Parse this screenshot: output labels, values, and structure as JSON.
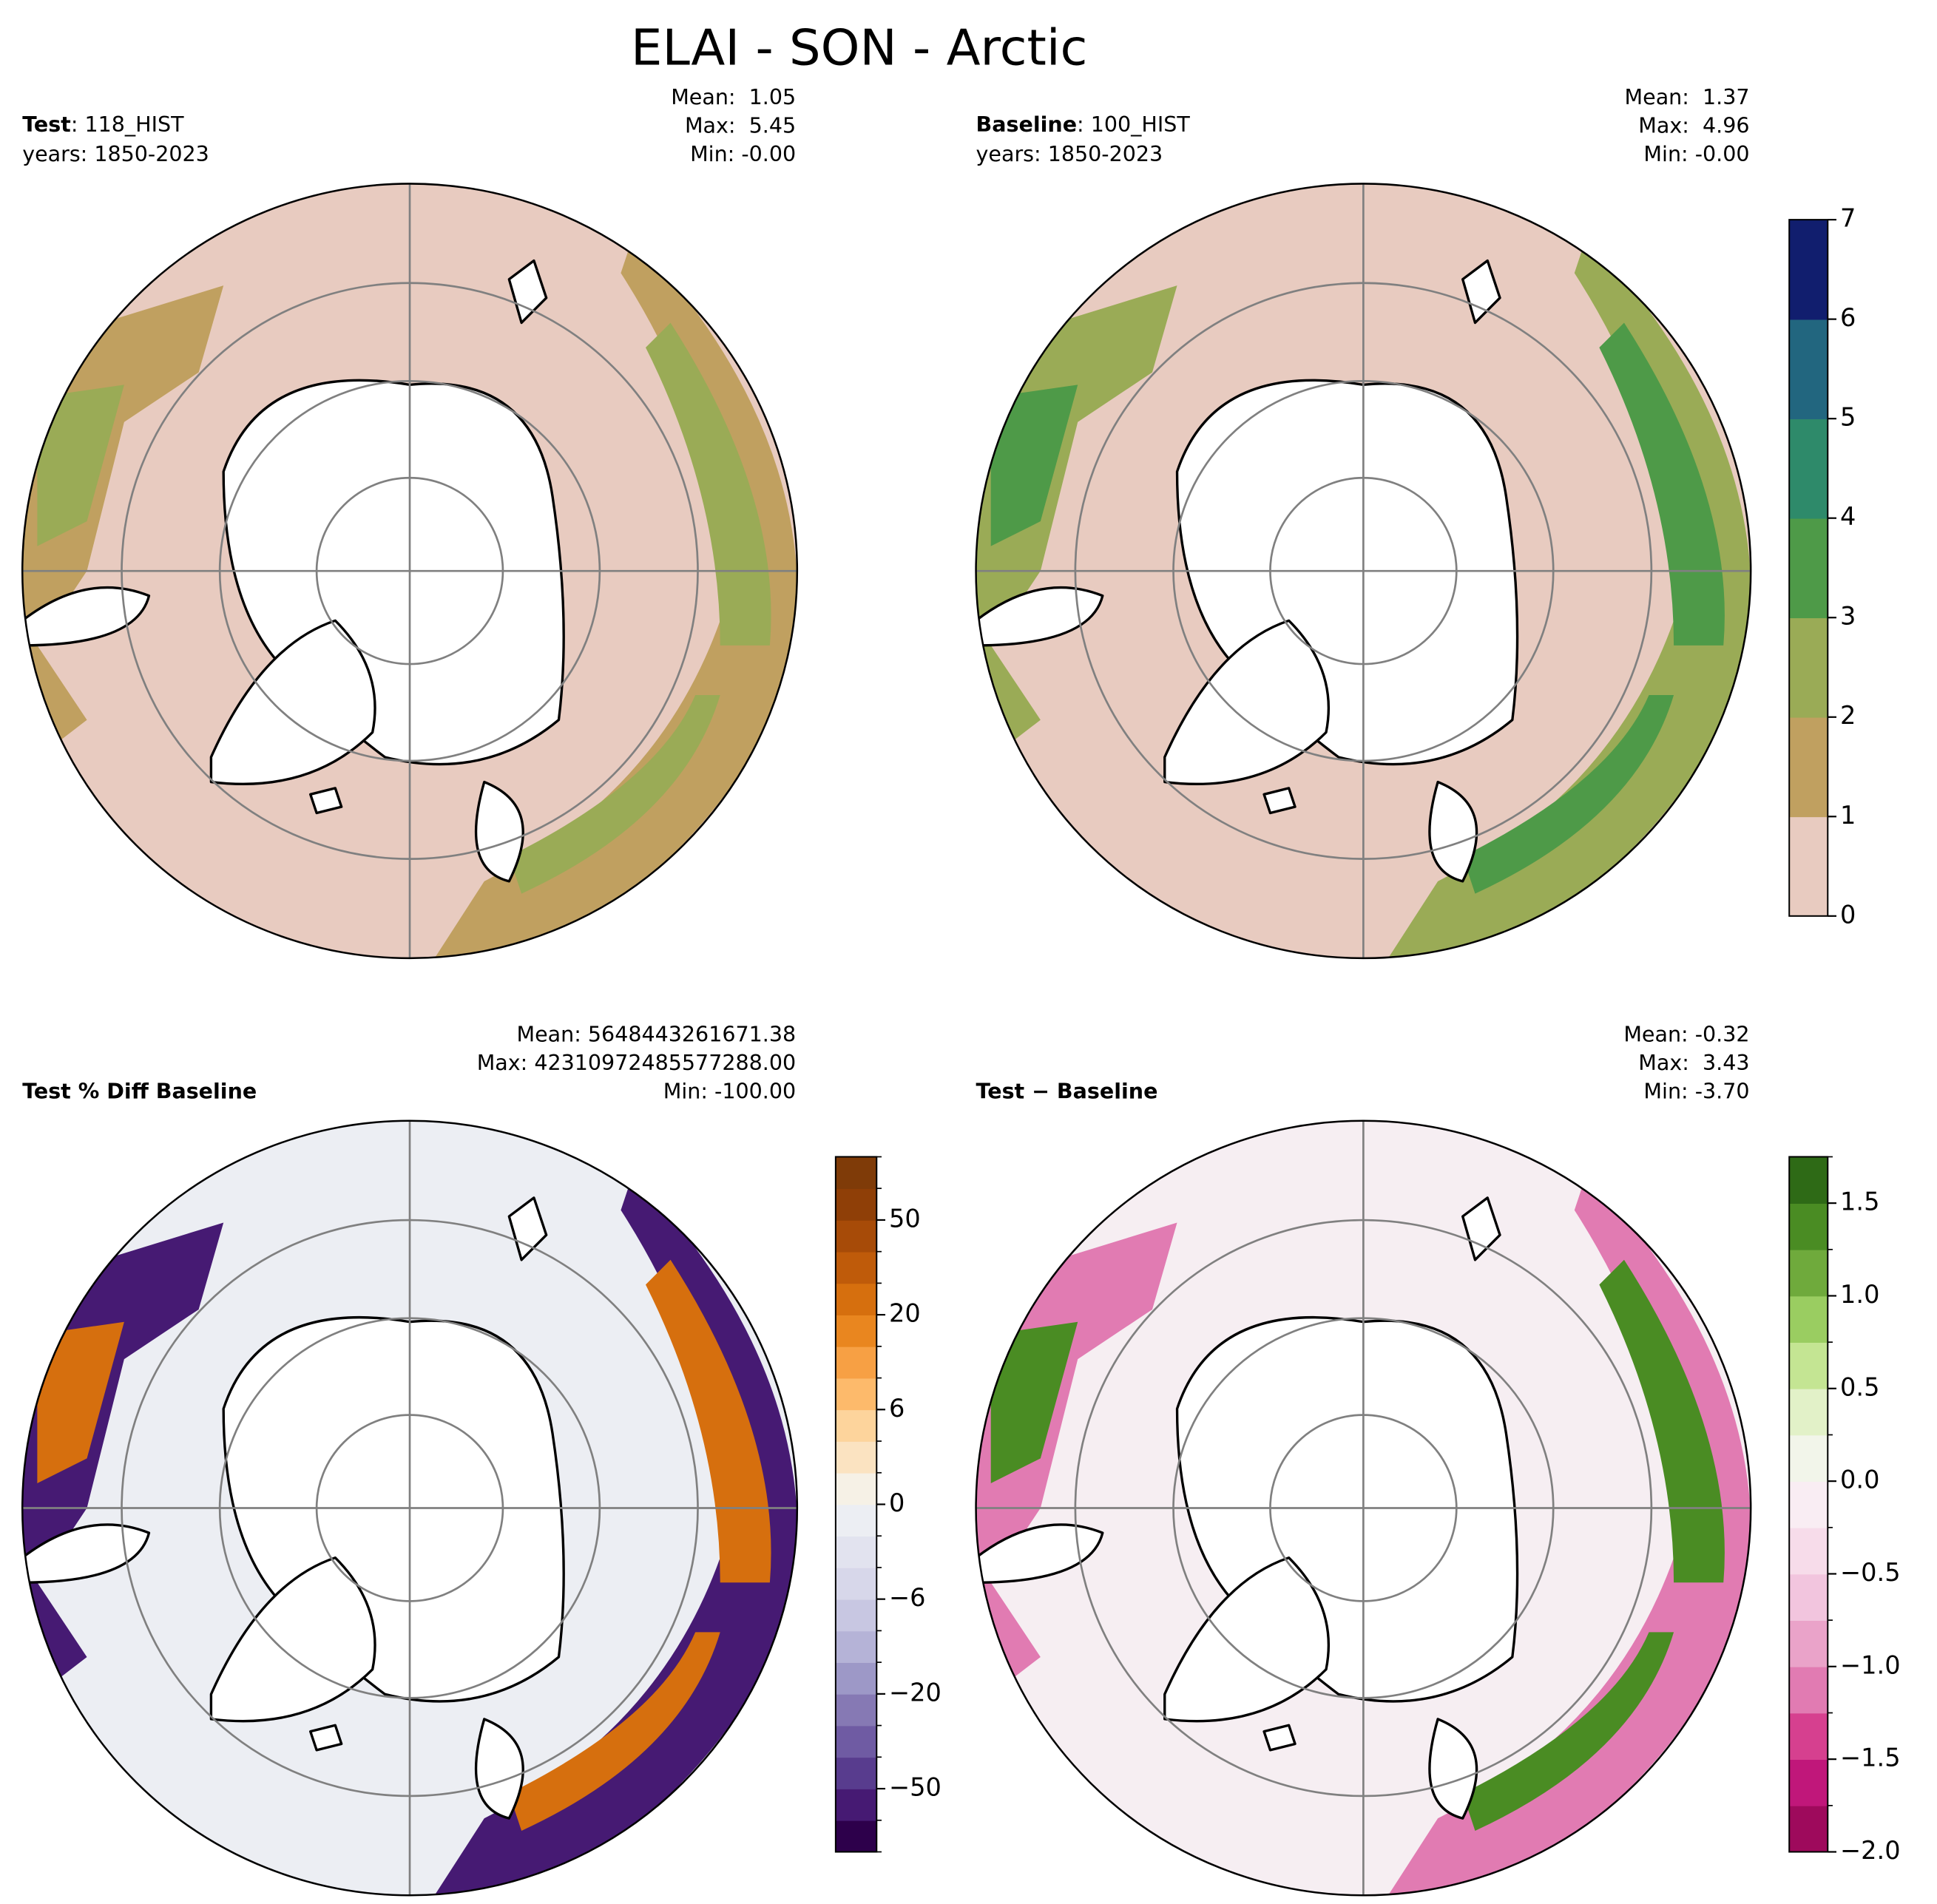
{
  "title": "ELAI - SON - Arctic",
  "panels": [
    {
      "name": "Test",
      "run": ": 118_HIST",
      "years": "years: 1850-2023",
      "stats": [
        "Mean:  1.05",
        "Max:  5.45",
        "Min: -0.00"
      ]
    },
    {
      "name": "Baseline",
      "run": ": 100_HIST",
      "years": "years: 1850-2023",
      "stats": [
        "Mean:  1.37",
        "Max:  4.96",
        "Min: -0.00"
      ]
    },
    {
      "name": "Test % Diff Baseline",
      "stats": [
        "Mean: 5648443261671.38",
        "Max: 42310972485577288.00",
        "Min: -100.00"
      ]
    },
    {
      "name": "Test − Baseline",
      "stats": [
        "Mean: -0.32",
        "Max:  3.43",
        "Min: -3.70"
      ]
    }
  ],
  "colorbars": [
    {
      "levels": [
        0,
        1,
        2,
        3,
        4,
        5,
        6,
        7
      ],
      "colors": [
        "#e8cbc0",
        "#c0a060",
        "#9aab56",
        "#4e9a48",
        "#2e8a6a",
        "#22667f",
        "#111e6e"
      ],
      "ticks": [
        0,
        1,
        2,
        3,
        4,
        5,
        6,
        7
      ]
    },
    {
      "levels": [
        -100,
        -75,
        -50,
        -40,
        -30,
        -20,
        -15,
        -10,
        -6,
        -4,
        -2,
        0,
        2,
        4,
        6,
        10,
        15,
        20,
        30,
        40,
        50,
        75,
        100
      ],
      "colors": [
        "#2d004b",
        "#461a73",
        "#583c8e",
        "#6f5ba3",
        "#8679b4",
        "#9d98c7",
        "#b5b3d7",
        "#c8c7e2",
        "#d7d7ea",
        "#e2e3ef",
        "#eceef3",
        "#f6f1e6",
        "#fbe3c1",
        "#fdd49c",
        "#fdba6b",
        "#f7a044",
        "#e9861f",
        "#d66f0e",
        "#bf5b0a",
        "#a74b08",
        "#8f3f07",
        "#7f3b08"
      ],
      "ticks": [
        {
          "value": -50,
          "label": "−50"
        },
        {
          "value": -20,
          "label": "−20"
        },
        {
          "value": -6,
          "label": "−6"
        },
        0,
        6,
        20,
        50
      ]
    },
    {
      "levels": [
        -2,
        -1.75,
        -1.5,
        -1.25,
        -1,
        -0.75,
        -0.5,
        -0.25,
        0,
        0.25,
        0.5,
        0.75,
        1,
        1.25,
        1.5,
        1.75
      ],
      "colors": [
        "#9e0a5c",
        "#c0177a",
        "#d6408f",
        "#e17bb2",
        "#eaa3c9",
        "#f2c5de",
        "#f7dcea",
        "#f9edf3",
        "#f2f5ea",
        "#e2f1c8",
        "#c4e593",
        "#9acd61",
        "#6faa3c",
        "#4a8c23",
        "#2e6a16"
      ],
      "ticks": [
        {
          "value": -2,
          "label": "−2.0"
        },
        {
          "value": -1.5,
          "label": "−1.5"
        },
        {
          "value": -1,
          "label": "−1.0"
        },
        {
          "value": -0.5,
          "label": "−0.5"
        },
        {
          "value": 0,
          "label": "0.0"
        },
        0.5,
        {
          "value": 1,
          "label": "1.0"
        },
        1.5
      ]
    }
  ]
}
